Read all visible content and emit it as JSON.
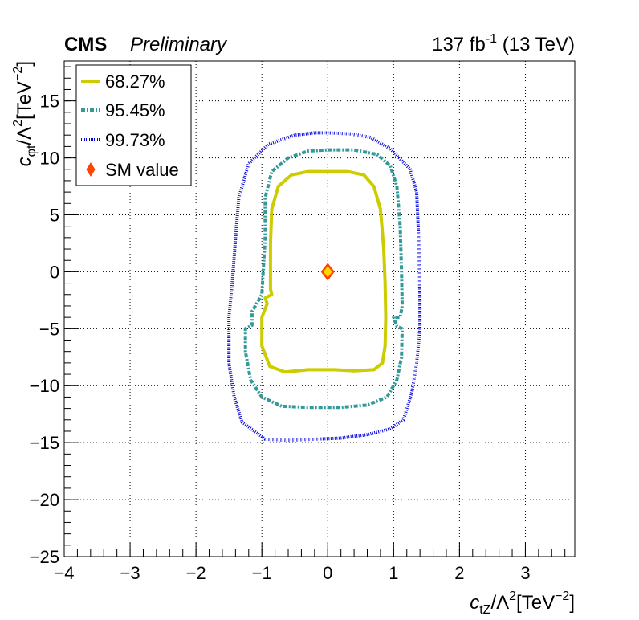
{
  "header": {
    "experiment": "CMS",
    "status": "Preliminary",
    "lumi_value": "137 fb",
    "lumi_exp": "-1",
    "energy": " (13 TeV)"
  },
  "axes": {
    "x_label_main": "c",
    "x_label_sub": "tZ",
    "x_label_rest": "/Λ",
    "x_label_sup": "2",
    "x_label_unit": "[TeV",
    "x_label_unit_sup": "−2",
    "x_label_close": "]",
    "y_label_main": "c",
    "y_label_sub": "φt",
    "y_label_rest": "/Λ",
    "y_label_sup": "2",
    "y_label_unit": "[TeV",
    "y_label_unit_sup": "−2",
    "y_label_close": "]"
  },
  "legend": {
    "items": [
      {
        "label": "68.27%",
        "style": "solid",
        "color": "#cccc00"
      },
      {
        "label": "95.45%",
        "style": "dashed",
        "color": "#339999"
      },
      {
        "label": "99.73%",
        "style": "dotted",
        "color": "#0000dd"
      },
      {
        "label": "SM value",
        "style": "marker",
        "color": "#ff4400"
      }
    ]
  },
  "chart_data": {
    "type": "scatter",
    "description_kind": "2D likelihood contours",
    "xlim": [
      -4,
      3.75
    ],
    "ylim": [
      -25,
      18.5
    ],
    "x_ticks": [
      -4,
      -3,
      -2,
      -1,
      0,
      1,
      2,
      3
    ],
    "y_ticks": [
      -25,
      -20,
      -15,
      -10,
      -5,
      0,
      5,
      10,
      15
    ],
    "grid": true,
    "legend_position": "top-left",
    "sm_point": {
      "x": 0,
      "y": 0,
      "color": "#ff4400",
      "fill": "#ffd700"
    },
    "series": [
      {
        "name": "68.27%",
        "color": "#cccc00",
        "style": "solid",
        "points": [
          [
            0,
            8.8
          ],
          [
            0.3,
            8.8
          ],
          [
            0.55,
            8.5
          ],
          [
            0.7,
            7.5
          ],
          [
            0.8,
            5.5
          ],
          [
            0.85,
            2.0
          ],
          [
            0.87,
            -1.0
          ],
          [
            0.88,
            -4.0
          ],
          [
            0.87,
            -6.5
          ],
          [
            0.83,
            -8.0
          ],
          [
            0.7,
            -8.6
          ],
          [
            0.4,
            -8.7
          ],
          [
            0.1,
            -8.6
          ],
          [
            -0.3,
            -8.6
          ],
          [
            -0.65,
            -8.8
          ],
          [
            -0.88,
            -8.3
          ],
          [
            -1.0,
            -6.5
          ],
          [
            -1.0,
            -4.0
          ],
          [
            -0.92,
            -2.8
          ],
          [
            -0.95,
            -2.3
          ],
          [
            -0.85,
            -2.0
          ],
          [
            -0.87,
            -1.5
          ],
          [
            -0.87,
            2.5
          ],
          [
            -0.85,
            5.5
          ],
          [
            -0.75,
            7.5
          ],
          [
            -0.55,
            8.5
          ],
          [
            -0.3,
            8.8
          ],
          [
            0,
            8.8
          ]
        ]
      },
      {
        "name": "95.45%",
        "color": "#339999",
        "style": "dashed",
        "points": [
          [
            0,
            10.7
          ],
          [
            0.4,
            10.7
          ],
          [
            0.75,
            10.3
          ],
          [
            0.95,
            9.3
          ],
          [
            1.05,
            7.5
          ],
          [
            1.1,
            4.0
          ],
          [
            1.12,
            0.0
          ],
          [
            1.13,
            -3.0
          ],
          [
            1.1,
            -4.0
          ],
          [
            1.0,
            -4.0
          ],
          [
            1.05,
            -4.8
          ],
          [
            1.13,
            -5.0
          ],
          [
            1.12,
            -7.5
          ],
          [
            1.05,
            -9.5
          ],
          [
            0.9,
            -11.0
          ],
          [
            0.6,
            -11.7
          ],
          [
            0.2,
            -11.9
          ],
          [
            -0.3,
            -11.9
          ],
          [
            -0.7,
            -11.8
          ],
          [
            -1.0,
            -11.0
          ],
          [
            -1.17,
            -9.5
          ],
          [
            -1.25,
            -7.0
          ],
          [
            -1.25,
            -5.0
          ],
          [
            -1.15,
            -4.7
          ],
          [
            -1.15,
            -3.5
          ],
          [
            -1.0,
            -2.0
          ],
          [
            -0.95,
            3.0
          ],
          [
            -0.95,
            6.5
          ],
          [
            -0.85,
            8.8
          ],
          [
            -0.6,
            10.0
          ],
          [
            -0.3,
            10.6
          ],
          [
            0,
            10.7
          ]
        ]
      },
      {
        "name": "99.73%",
        "color": "#0000dd",
        "style": "dotted",
        "points": [
          [
            0,
            12.2
          ],
          [
            0.35,
            12.1
          ],
          [
            0.65,
            11.8
          ],
          [
            0.95,
            10.8
          ],
          [
            1.25,
            9.0
          ],
          [
            1.35,
            7.0
          ],
          [
            1.38,
            3.0
          ],
          [
            1.4,
            -2.0
          ],
          [
            1.4,
            -5.0
          ],
          [
            1.35,
            -8.0
          ],
          [
            1.28,
            -10.5
          ],
          [
            1.15,
            -13.0
          ],
          [
            0.95,
            -13.8
          ],
          [
            0.6,
            -14.3
          ],
          [
            0.2,
            -14.6
          ],
          [
            -0.2,
            -14.7
          ],
          [
            -0.6,
            -14.8
          ],
          [
            -0.95,
            -14.7
          ],
          [
            -1.3,
            -13.2
          ],
          [
            -1.42,
            -11.0
          ],
          [
            -1.5,
            -8.0
          ],
          [
            -1.5,
            -4.0
          ],
          [
            -1.45,
            -1.0
          ],
          [
            -1.4,
            3.0
          ],
          [
            -1.35,
            6.5
          ],
          [
            -1.2,
            9.5
          ],
          [
            -0.9,
            11.2
          ],
          [
            -0.5,
            12.0
          ],
          [
            -0.2,
            12.2
          ],
          [
            0,
            12.2
          ]
        ]
      }
    ]
  }
}
